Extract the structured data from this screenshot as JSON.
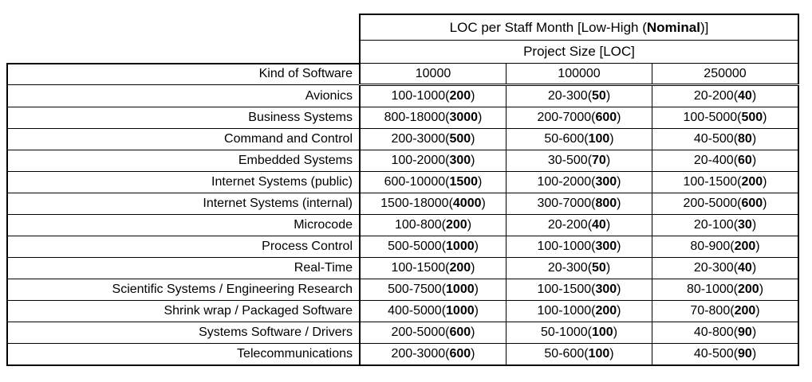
{
  "title": {
    "prefix": "LOC per Staff Month [Low-High (",
    "bold": "Nominal",
    "suffix": ")]"
  },
  "subtitle": "Project Size [LOC]",
  "kind_header": "Kind of Software",
  "size_columns": [
    "10000",
    "100000",
    "250000"
  ],
  "rows": [
    {
      "name": "Avionics",
      "cells": [
        {
          "range": "100-1000",
          "nominal": "200"
        },
        {
          "range": "20-300",
          "nominal": "50"
        },
        {
          "range": "20-200",
          "nominal": "40"
        }
      ]
    },
    {
      "name": "Business Systems",
      "cells": [
        {
          "range": "800-18000",
          "nominal": "3000"
        },
        {
          "range": "200-7000",
          "nominal": "600"
        },
        {
          "range": "100-5000",
          "nominal": "500"
        }
      ]
    },
    {
      "name": "Command and Control",
      "cells": [
        {
          "range": "200-3000",
          "nominal": "500"
        },
        {
          "range": "50-600",
          "nominal": "100"
        },
        {
          "range": "40-500",
          "nominal": "80"
        }
      ]
    },
    {
      "name": "Embedded Systems",
      "cells": [
        {
          "range": "100-2000",
          "nominal": "300"
        },
        {
          "range": "30-500",
          "nominal": "70"
        },
        {
          "range": "20-400",
          "nominal": "60"
        }
      ]
    },
    {
      "name": "Internet Systems (public)",
      "cells": [
        {
          "range": "600-10000",
          "nominal": "1500"
        },
        {
          "range": "100-2000",
          "nominal": "300"
        },
        {
          "range": "100-1500",
          "nominal": "200"
        }
      ]
    },
    {
      "name": "Internet Systems (internal)",
      "cells": [
        {
          "range": "1500-18000",
          "nominal": "4000"
        },
        {
          "range": "300-7000",
          "nominal": "800"
        },
        {
          "range": "200-5000",
          "nominal": "600"
        }
      ]
    },
    {
      "name": "Microcode",
      "cells": [
        {
          "range": "100-800",
          "nominal": "200"
        },
        {
          "range": "20-200",
          "nominal": "40"
        },
        {
          "range": "20-100",
          "nominal": "30"
        }
      ]
    },
    {
      "name": "Process Control",
      "cells": [
        {
          "range": "500-5000",
          "nominal": "1000"
        },
        {
          "range": "100-1000",
          "nominal": "300"
        },
        {
          "range": "80-900",
          "nominal": "200"
        }
      ]
    },
    {
      "name": "Real-Time",
      "cells": [
        {
          "range": "100-1500",
          "nominal": "200"
        },
        {
          "range": "20-300",
          "nominal": "50"
        },
        {
          "range": "20-300",
          "nominal": "40"
        }
      ]
    },
    {
      "name": "Scientific Systems / Engineering Research",
      "cells": [
        {
          "range": "500-7500",
          "nominal": "1000"
        },
        {
          "range": "100-1500",
          "nominal": "300"
        },
        {
          "range": "80-1000",
          "nominal": "200"
        }
      ]
    },
    {
      "name": "Shrink wrap / Packaged Software",
      "cells": [
        {
          "range": "400-5000",
          "nominal": "1000"
        },
        {
          "range": "100-1000",
          "nominal": "200"
        },
        {
          "range": "70-800",
          "nominal": "200"
        }
      ]
    },
    {
      "name": "Systems Software / Drivers",
      "cells": [
        {
          "range": "200-5000",
          "nominal": "600"
        },
        {
          "range": "50-1000",
          "nominal": "100"
        },
        {
          "range": "40-800",
          "nominal": "90"
        }
      ]
    },
    {
      "name": "Telecommunications",
      "cells": [
        {
          "range": "200-3000",
          "nominal": "600"
        },
        {
          "range": "50-600",
          "nominal": "100"
        },
        {
          "range": "40-500",
          "nominal": "90"
        }
      ]
    }
  ]
}
